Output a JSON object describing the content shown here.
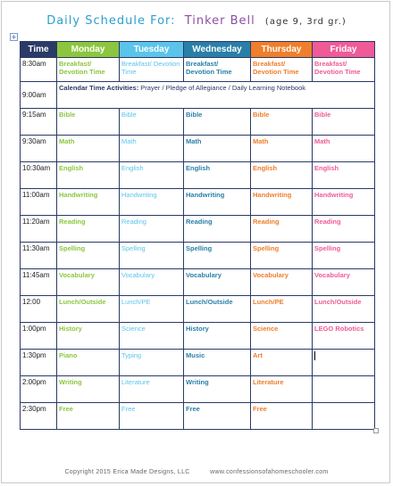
{
  "title": {
    "prefix": "Daily Schedule For:",
    "name": "Tinker Bell",
    "info": "(age 9, 3rd gr.)"
  },
  "headers": [
    "Time",
    "Monday",
    "Tuesday",
    "Wednesday",
    "Thursday",
    "Friday"
  ],
  "calendar_row": {
    "time": "9:00am",
    "label": "Calendar Time Activities:",
    "text": "Prayer / Pledge of Allegiance / Daily Learning Notebook"
  },
  "rows": [
    {
      "time": "8:30am",
      "mon": "Breakfast/ Devotion Time",
      "tue": "Breakfast/ Devotion Time",
      "wed": "Breakfast/ Devotion Time",
      "thu": "Breakfast/ Devotion Time",
      "fri": "Breakfast/ Devotion Time"
    },
    {
      "time": "9:15am",
      "mon": "Bible",
      "tue": "Bible",
      "wed": "Bible",
      "thu": "Bible",
      "fri": "Bible"
    },
    {
      "time": "9:30am",
      "mon": "Math",
      "tue": "Math",
      "wed": "Math",
      "thu": "Math",
      "fri": "Math"
    },
    {
      "time": "10:30am",
      "mon": "English",
      "tue": "English",
      "wed": "English",
      "thu": "English",
      "fri": "English"
    },
    {
      "time": "11:00am",
      "mon": "Handwriting",
      "tue": "Handwriting",
      "wed": "Handwriting",
      "thu": "Handwriting",
      "fri": "Handwriting"
    },
    {
      "time": "11:20am",
      "mon": "Reading",
      "tue": "Reading",
      "wed": "Reading",
      "thu": "Reading",
      "fri": "Reading"
    },
    {
      "time": "11:30am",
      "mon": "Spelling",
      "tue": "Spelling",
      "wed": "Spelling",
      "thu": "Spelling",
      "fri": "Spelling"
    },
    {
      "time": "11:45am",
      "mon": "Vocabulary",
      "tue": "Vocabulary",
      "wed": "Vocabulary",
      "thu": "Vocabulary",
      "fri": "Vocabulary"
    },
    {
      "time": "12:00",
      "mon": "Lunch/Outside",
      "tue": "Lunch/PE",
      "wed": "Lunch/Outside",
      "thu": "Lunch/PE",
      "fri": "Lunch/Outside"
    },
    {
      "time": "1:00pm",
      "mon": "History",
      "tue": "Science",
      "wed": "History",
      "thu": "Science",
      "fri": "LEGO Robotics"
    },
    {
      "time": "1:30pm",
      "mon": "Piano",
      "tue": "Typing",
      "wed": "Music",
      "thu": "Art",
      "fri": ""
    },
    {
      "time": "2:00pm",
      "mon": "Writing",
      "tue": "Literature",
      "wed": "Writing",
      "thu": "Literature",
      "fri": ""
    },
    {
      "time": "2:30pm",
      "mon": "Free",
      "tue": "Free",
      "wed": "Free",
      "thu": "Free",
      "fri": ""
    }
  ],
  "footer": {
    "copyright": "Copyright 2015 Erica Made Designs, LLC",
    "website": "www.confessionsofahomeschooler.com"
  },
  "colors": {
    "navy": "#2b3a66",
    "monday": "#8cc63f",
    "tuesday": "#5bc4ea",
    "wednesday": "#2a7fa8",
    "thursday": "#f07e2a",
    "friday": "#ef5b97"
  }
}
